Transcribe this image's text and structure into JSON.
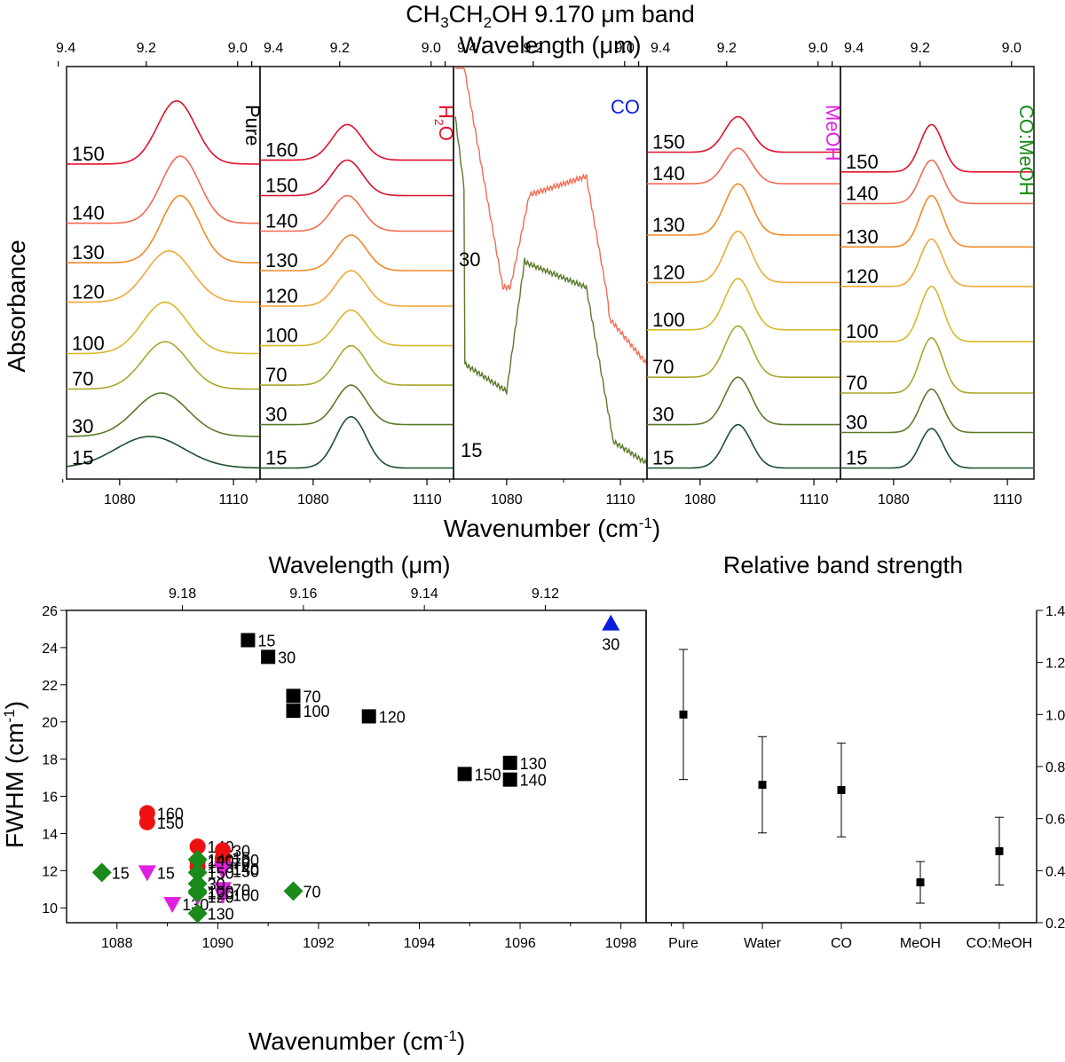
{
  "figure": {
    "title": "CH3CH2OH  9.170 μm band"
  },
  "chart_data": [
    {
      "type": "line",
      "panel": "spectra",
      "top_axis_label": "Wavelength (μm)",
      "xlabel": "Wavenumber (cm-1)",
      "ylabel": "Absorbance",
      "x_range": [
        1066,
        1117
      ],
      "x_ticks": [
        1080,
        1110
      ],
      "x_tick_labels": [
        "1080",
        "1110"
      ],
      "top_ticks": [
        "9.4",
        "9.2",
        "9.0"
      ],
      "ylim": [
        0,
        1
      ],
      "subplots": [
        {
          "label": "Pure",
          "label_color": "#000000",
          "vertical_label": true,
          "curves": [
            {
              "temp": "15",
              "color": "#1d4f2d",
              "peak": 1088,
              "width": 9,
              "height": 0.08,
              "baseline": 0.01
            },
            {
              "temp": "30",
              "color": "#5a7a28",
              "peak": 1091,
              "width": 7,
              "height": 0.11,
              "baseline": 0.09
            },
            {
              "temp": "70",
              "color": "#a9a62a",
              "peak": 1092,
              "width": 6,
              "height": 0.12,
              "baseline": 0.21
            },
            {
              "temp": "100",
              "color": "#d6b82a",
              "peak": 1092,
              "width": 6,
              "height": 0.13,
              "baseline": 0.3
            },
            {
              "temp": "120",
              "color": "#f0a93a",
              "peak": 1093,
              "width": 6,
              "height": 0.13,
              "baseline": 0.43
            },
            {
              "temp": "130",
              "color": "#f08a2a",
              "peak": 1096,
              "width": 5,
              "height": 0.17,
              "baseline": 0.53
            },
            {
              "temp": "140",
              "color": "#f26b52",
              "peak": 1096,
              "width": 5,
              "height": 0.17,
              "baseline": 0.63
            },
            {
              "temp": "150",
              "color": "#e3102c",
              "peak": 1095,
              "width": 5,
              "height": 0.16,
              "baseline": 0.78
            }
          ]
        },
        {
          "label": "H2O",
          "label_color": "#e3102c",
          "vertical_label": true,
          "curves": [
            {
              "temp": "15",
              "color": "#1d4f2d",
              "peak": 1090,
              "width": 4,
              "height": 0.13,
              "baseline": 0.01
            },
            {
              "temp": "30",
              "color": "#5a7a28",
              "peak": 1090,
              "width": 4,
              "height": 0.1,
              "baseline": 0.12
            },
            {
              "temp": "70",
              "color": "#a9a62a",
              "peak": 1090,
              "width": 4,
              "height": 0.1,
              "baseline": 0.22
            },
            {
              "temp": "100",
              "color": "#d6b82a",
              "peak": 1090,
              "width": 4,
              "height": 0.09,
              "baseline": 0.32
            },
            {
              "temp": "120",
              "color": "#f0a93a",
              "peak": 1090,
              "width": 4,
              "height": 0.09,
              "baseline": 0.42
            },
            {
              "temp": "130",
              "color": "#f08a2a",
              "peak": 1090,
              "width": 4,
              "height": 0.09,
              "baseline": 0.51
            },
            {
              "temp": "140",
              "color": "#f26b52",
              "peak": 1089,
              "width": 4,
              "height": 0.09,
              "baseline": 0.61
            },
            {
              "temp": "150",
              "color": "#d2102c",
              "peak": 1089,
              "width": 4,
              "height": 0.09,
              "baseline": 0.7
            },
            {
              "temp": "160",
              "color": "#e3102c",
              "peak": 1089,
              "width": 4,
              "height": 0.09,
              "baseline": 0.79
            }
          ]
        },
        {
          "label": "CO",
          "label_color": "#0a1ee0",
          "vertical_label": false,
          "curves": [
            {
              "temp": "15",
              "color": "#5a7a28",
              "profile": "co_low"
            },
            {
              "temp": "30",
              "color": "#f26b52",
              "profile": "co_high"
            }
          ]
        },
        {
          "label": "MeOH",
          "label_color": "#e020e0",
          "vertical_label": true,
          "curves": [
            {
              "temp": "15",
              "color": "#1d4f2d",
              "peak": 1090,
              "width": 3.5,
              "height": 0.11,
              "baseline": 0.01
            },
            {
              "temp": "30",
              "color": "#5a7a28",
              "peak": 1090,
              "width": 3.5,
              "height": 0.12,
              "baseline": 0.12
            },
            {
              "temp": "70",
              "color": "#a9a62a",
              "peak": 1090,
              "width": 3.5,
              "height": 0.13,
              "baseline": 0.24
            },
            {
              "temp": "100",
              "color": "#d6b82a",
              "peak": 1090,
              "width": 3.5,
              "height": 0.13,
              "baseline": 0.36
            },
            {
              "temp": "120",
              "color": "#f0a93a",
              "peak": 1090,
              "width": 3.5,
              "height": 0.13,
              "baseline": 0.48
            },
            {
              "temp": "130",
              "color": "#f08a2a",
              "peak": 1090,
              "width": 3.5,
              "height": 0.13,
              "baseline": 0.6
            },
            {
              "temp": "140",
              "color": "#f26b52",
              "peak": 1090,
              "width": 3.5,
              "height": 0.09,
              "baseline": 0.73
            },
            {
              "temp": "150",
              "color": "#e3102c",
              "peak": 1090,
              "width": 3.5,
              "height": 0.09,
              "baseline": 0.81
            }
          ]
        },
        {
          "label": "CO:MeOH",
          "label_color": "#1a8a1a",
          "vertical_label": true,
          "curves": [
            {
              "temp": "15",
              "color": "#1d4f2d",
              "peak": 1090,
              "width": 3,
              "height": 0.1,
              "baseline": 0.01
            },
            {
              "temp": "30",
              "color": "#5a7a28",
              "peak": 1090,
              "width": 3,
              "height": 0.11,
              "baseline": 0.1
            },
            {
              "temp": "70",
              "color": "#a9a62a",
              "peak": 1090,
              "width": 3,
              "height": 0.14,
              "baseline": 0.2
            },
            {
              "temp": "100",
              "color": "#d6b82a",
              "peak": 1090,
              "width": 3,
              "height": 0.14,
              "baseline": 0.33
            },
            {
              "temp": "120",
              "color": "#f0a93a",
              "peak": 1090,
              "width": 3,
              "height": 0.12,
              "baseline": 0.47
            },
            {
              "temp": "130",
              "color": "#f08a2a",
              "peak": 1090,
              "width": 3,
              "height": 0.13,
              "baseline": 0.57
            },
            {
              "temp": "140",
              "color": "#f26b52",
              "peak": 1090,
              "width": 3,
              "height": 0.11,
              "baseline": 0.68
            },
            {
              "temp": "150",
              "color": "#e3102c",
              "peak": 1090,
              "width": 3,
              "height": 0.12,
              "baseline": 0.76
            }
          ]
        }
      ]
    },
    {
      "type": "scatter",
      "panel": "fwhm",
      "xlabel": "Wavenumber (cm-1)",
      "ylabel": "FWHM (cm-1)",
      "top_axis_label": "Wavelength (μm)",
      "xlim": [
        1087,
        1098.5
      ],
      "ylim": [
        9.2,
        26
      ],
      "x_ticks": [
        1088,
        1090,
        1092,
        1094,
        1096,
        1098
      ],
      "y_ticks": [
        10,
        12,
        14,
        16,
        18,
        20,
        22,
        24,
        26
      ],
      "top_ticks": [
        9.18,
        9.16,
        9.14,
        9.12
      ],
      "top_tick_labels": [
        "9.18",
        "9.16",
        "9.14",
        "9.12"
      ],
      "series": [
        {
          "mixture": "Pure",
          "color": "#000000",
          "marker": "square",
          "points": [
            {
              "x": 1090.6,
              "y": 24.4,
              "label": "15"
            },
            {
              "x": 1091.0,
              "y": 23.5,
              "label": "30"
            },
            {
              "x": 1091.5,
              "y": 21.4,
              "label": "70"
            },
            {
              "x": 1091.5,
              "y": 20.6,
              "label": "100"
            },
            {
              "x": 1093.0,
              "y": 20.3,
              "label": "120"
            },
            {
              "x": 1095.8,
              "y": 17.8,
              "label": "130"
            },
            {
              "x": 1095.8,
              "y": 16.9,
              "label": "140"
            },
            {
              "x": 1094.9,
              "y": 17.2,
              "label": "150"
            }
          ]
        },
        {
          "mixture": "CO",
          "color": "#0a1ee0",
          "marker": "triangle-up",
          "points": [
            {
              "x": 1097.8,
              "y": 25.3,
              "label": "30"
            }
          ]
        },
        {
          "mixture": "H2O",
          "color": "#ee1111",
          "marker": "circle",
          "points": [
            {
              "x": 1088.6,
              "y": 15.1,
              "label": "160"
            },
            {
              "x": 1088.6,
              "y": 14.6,
              "label": "150"
            },
            {
              "x": 1089.6,
              "y": 13.3,
              "label": "140"
            },
            {
              "x": 1090.1,
              "y": 13.1,
              "label": "30"
            },
            {
              "x": 1090.1,
              "y": 12.7,
              "label": "15"
            },
            {
              "x": 1090.1,
              "y": 12.6,
              "label": "100"
            },
            {
              "x": 1090.1,
              "y": 12.4,
              "label": "70"
            },
            {
              "x": 1089.6,
              "y": 12.5,
              "label": "120"
            },
            {
              "x": 1089.6,
              "y": 12.2,
              "label": "130"
            }
          ]
        },
        {
          "mixture": "MeOH",
          "color": "#e020e0",
          "marker": "triangle-down",
          "points": [
            {
              "x": 1088.6,
              "y": 11.9,
              "label": "15"
            },
            {
              "x": 1089.1,
              "y": 10.2,
              "label": "130"
            },
            {
              "x": 1089.6,
              "y": 10.6,
              "label": "120"
            },
            {
              "x": 1090.1,
              "y": 12.1,
              "label": "140"
            },
            {
              "x": 1090.1,
              "y": 11.0,
              "label": "70"
            },
            {
              "x": 1090.1,
              "y": 10.7,
              "label": "100"
            },
            {
              "x": 1090.1,
              "y": 12.0,
              "label": "150"
            }
          ]
        },
        {
          "mixture": "CO:MeOH",
          "color": "#1a8a1a",
          "marker": "diamond",
          "points": [
            {
              "x": 1087.7,
              "y": 11.9,
              "label": "15"
            },
            {
              "x": 1089.6,
              "y": 12.6,
              "label": "140"
            },
            {
              "x": 1089.6,
              "y": 11.9,
              "label": "150"
            },
            {
              "x": 1089.6,
              "y": 11.3,
              "label": "30"
            },
            {
              "x": 1089.6,
              "y": 10.9,
              "label": "100"
            },
            {
              "x": 1089.6,
              "y": 10.8,
              "label": "120"
            },
            {
              "x": 1089.6,
              "y": 9.7,
              "label": "130"
            },
            {
              "x": 1091.5,
              "y": 10.9,
              "label": "70"
            }
          ]
        }
      ]
    },
    {
      "type": "scatter",
      "panel": "band-strength",
      "title": "Relative band strength",
      "categories": [
        "Pure",
        "Water",
        "CO",
        "MeOH",
        "CO:MeOH"
      ],
      "values": [
        1.0,
        0.73,
        0.71,
        0.355,
        0.475
      ],
      "errors": [
        0.25,
        0.185,
        0.18,
        0.08,
        0.13
      ],
      "ylim": [
        0.2,
        1.4
      ],
      "y_ticks": [
        0.2,
        0.4,
        0.6,
        0.8,
        1.0,
        1.2,
        1.4
      ],
      "y_tick_labels": [
        "0.2",
        "0.4",
        "0.6",
        "0.8",
        "1.0",
        "1.2",
        "1.4"
      ],
      "color": "#000000"
    }
  ]
}
